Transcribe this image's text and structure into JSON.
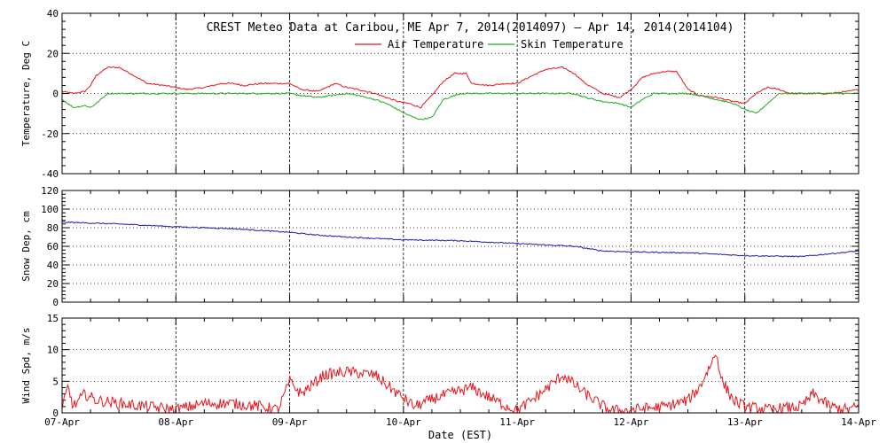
{
  "title": "CREST Meteo Data at Caribou, ME   Apr  7, 2014(2014097) – Apr 14, 2014(2014104)",
  "xlabel": "Date (EST)",
  "x_ticks": [
    "07-Apr",
    "08-Apr",
    "09-Apr",
    "10-Apr",
    "11-Apr",
    "12-Apr",
    "13-Apr",
    "14-Apr"
  ],
  "legend": [
    {
      "label": "Air Temperature",
      "color": "#e8151b"
    },
    {
      "label": "Skin Temperature",
      "color": "#1faa1f"
    }
  ],
  "chart_data": [
    {
      "type": "line",
      "ylabel": "Temperature, Deg C",
      "ylim": [
        -40,
        40
      ],
      "yticks": [
        -40,
        -20,
        0,
        20,
        40
      ],
      "series": [
        {
          "name": "Air Temperature",
          "color": "#e8151b",
          "x": [
            0,
            0.1,
            0.2,
            0.25,
            0.3,
            0.4,
            0.5,
            0.6,
            0.75,
            0.9,
            1.0,
            1.1,
            1.25,
            1.4,
            1.5,
            1.6,
            1.75,
            1.9,
            2.0,
            2.1,
            2.25,
            2.4,
            2.5,
            2.6,
            2.75,
            2.85,
            2.95,
            3.05,
            3.15,
            3.25,
            3.35,
            3.45,
            3.55,
            3.6,
            3.75,
            3.9,
            4.0,
            4.1,
            4.25,
            4.4,
            4.5,
            4.6,
            4.75,
            4.9,
            5.0,
            5.1,
            5.2,
            5.3,
            5.4,
            5.5,
            5.6,
            5.75,
            5.9,
            6.0,
            6.1,
            6.2,
            6.3,
            6.4,
            6.5,
            6.6,
            6.75,
            6.9,
            7.0
          ],
          "values": [
            1,
            0,
            1,
            4,
            9,
            13,
            13,
            10,
            5,
            4,
            3,
            2,
            3,
            5,
            5,
            4,
            5,
            5,
            5,
            2,
            1,
            5,
            3,
            2,
            0,
            -2,
            -4,
            -5,
            -7,
            -1,
            6,
            10,
            10,
            5,
            4,
            5,
            5,
            8,
            12,
            13,
            10,
            5,
            0,
            -2,
            2,
            8,
            10,
            11,
            11,
            2,
            -1,
            -2,
            -4,
            -5,
            0,
            3,
            2,
            0,
            0,
            0,
            0,
            1,
            2
          ]
        },
        {
          "name": "Skin Temperature",
          "color": "#1faa1f",
          "x": [
            0,
            0.1,
            0.2,
            0.25,
            0.3,
            0.4,
            0.5,
            1.0,
            1.5,
            2.0,
            2.1,
            2.25,
            2.5,
            2.6,
            2.75,
            2.85,
            2.95,
            3.05,
            3.15,
            3.25,
            3.35,
            3.5,
            4.0,
            4.5,
            4.6,
            4.75,
            4.9,
            5.0,
            5.1,
            5.2,
            5.5,
            5.6,
            5.75,
            5.9,
            6.0,
            6.1,
            6.2,
            6.3,
            6.5,
            7.0
          ],
          "values": [
            -3,
            -7,
            -6,
            -7,
            -5,
            0,
            0,
            0,
            0,
            0,
            -1,
            -2,
            0,
            -1,
            -3,
            -5,
            -8,
            -11,
            -13,
            -12,
            -3,
            0,
            0,
            0,
            -2,
            -4,
            -5,
            -7,
            -3,
            0,
            0,
            -1,
            -3,
            -5,
            -8,
            -10,
            -5,
            0,
            0,
            0
          ]
        }
      ]
    },
    {
      "type": "line",
      "ylabel": "Snow Dep, cm",
      "ylim": [
        0,
        120
      ],
      "yticks": [
        0,
        20,
        40,
        60,
        80,
        100,
        120
      ],
      "series": [
        {
          "name": "",
          "color": "#1a1ab0",
          "x": [
            0,
            0.5,
            1,
            1.5,
            2,
            2.25,
            2.5,
            3,
            3.5,
            4,
            4.5,
            4.75,
            5,
            5.5,
            6,
            6.5,
            6.75,
            7
          ],
          "values": [
            86,
            84,
            81,
            79,
            75,
            72,
            70,
            67,
            66,
            63,
            60,
            55,
            54,
            53,
            50,
            49,
            52,
            55
          ]
        }
      ]
    },
    {
      "type": "line",
      "ylabel": "Wind Spd, m/s",
      "ylim": [
        0,
        15
      ],
      "yticks": [
        0,
        5,
        10,
        15
      ],
      "series": [
        {
          "name": "",
          "color": "#e8151b",
          "x": [
            0,
            0.05,
            0.1,
            0.2,
            0.3,
            0.5,
            0.75,
            1.0,
            1.25,
            1.5,
            1.75,
            1.9,
            2.0,
            2.1,
            2.3,
            2.5,
            2.75,
            2.95,
            3.1,
            3.3,
            3.6,
            3.8,
            4.0,
            4.2,
            4.4,
            4.6,
            4.8,
            4.95,
            5.0,
            5.3,
            5.5,
            5.6,
            5.75,
            5.8,
            5.9,
            6.0,
            6.2,
            6.5,
            6.6,
            6.75,
            6.9,
            7.0
          ],
          "values": [
            0.5,
            4,
            1,
            3,
            2,
            1.5,
            1,
            0.5,
            1.5,
            1.5,
            1,
            0.5,
            5,
            3,
            6,
            6.5,
            6,
            3,
            1,
            2.5,
            4,
            2,
            0.3,
            3,
            6,
            3,
            0.5,
            0.3,
            0.5,
            1,
            2,
            4,
            9.5,
            5,
            2,
            1,
            0.5,
            1,
            3,
            1,
            0.5,
            1
          ]
        }
      ]
    }
  ]
}
